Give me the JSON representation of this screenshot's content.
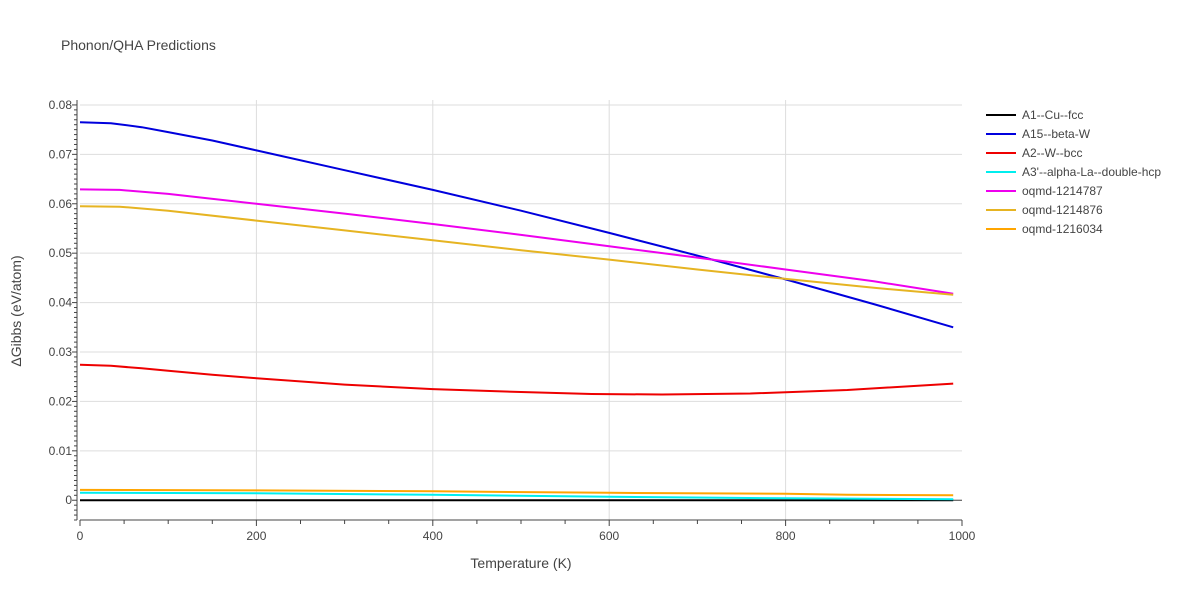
{
  "chart_data": {
    "type": "line",
    "title": "Phonon/QHA Predictions",
    "xlabel": "Temperature (K)",
    "ylabel": "ΔGibbs (eV/atom)",
    "xlim": [
      0,
      1000
    ],
    "ylim": [
      -0.004,
      0.081
    ],
    "xticks": [
      0,
      200,
      400,
      600,
      800,
      1000
    ],
    "xtick_labels": [
      "0",
      "200",
      "400",
      "600",
      "800",
      "1000"
    ],
    "yticks": [
      0,
      0.01,
      0.02,
      0.03,
      0.04,
      0.05,
      0.06,
      0.07,
      0.08
    ],
    "ytick_labels": [
      "0",
      "0.01",
      "0.02",
      "0.03",
      "0.04",
      "0.05",
      "0.06",
      "0.07",
      "0.08"
    ],
    "grid": true,
    "legend_position": "right",
    "series": [
      {
        "name": "A1--Cu--fcc",
        "color": "#000000",
        "x": [
          0,
          990
        ],
        "y": [
          0,
          0
        ]
      },
      {
        "name": "A15--beta-W",
        "color": "#0000dd",
        "x": [
          0,
          35,
          70,
          100,
          150,
          200,
          300,
          400,
          500,
          600,
          700,
          800,
          900,
          990
        ],
        "y": [
          0.0765,
          0.0763,
          0.0755,
          0.0745,
          0.0728,
          0.0708,
          0.0668,
          0.0628,
          0.0586,
          0.0541,
          0.0495,
          0.0447,
          0.0397,
          0.035
        ]
      },
      {
        "name": "A2--W--bcc",
        "color": "#ee0000",
        "x": [
          0,
          35,
          70,
          100,
          150,
          200,
          300,
          400,
          500,
          580,
          660,
          760,
          870,
          990
        ],
        "y": [
          0.0274,
          0.0272,
          0.0267,
          0.0262,
          0.0254,
          0.0247,
          0.0234,
          0.0225,
          0.0219,
          0.0215,
          0.0214,
          0.0216,
          0.0223,
          0.0236
        ]
      },
      {
        "name": "A3'--alpha-La--double-hcp",
        "color": "#00eeee",
        "x": [
          0,
          200,
          400,
          600,
          800,
          990
        ],
        "y": [
          0.0015,
          0.0014,
          0.0011,
          0.0007,
          0.0004,
          0.0002
        ]
      },
      {
        "name": "oqmd-1214787",
        "color": "#ee00ee",
        "x": [
          0,
          45,
          100,
          200,
          300,
          400,
          500,
          600,
          700,
          800,
          900,
          990
        ],
        "y": [
          0.0629,
          0.0628,
          0.062,
          0.06,
          0.058,
          0.0559,
          0.0537,
          0.0514,
          0.0491,
          0.0467,
          0.0443,
          0.0418
        ]
      },
      {
        "name": "oqmd-1214876",
        "color": "#e6b422",
        "x": [
          0,
          45,
          100,
          200,
          300,
          400,
          500,
          600,
          700,
          800,
          900,
          990
        ],
        "y": [
          0.0595,
          0.0594,
          0.0586,
          0.0566,
          0.0546,
          0.0526,
          0.0506,
          0.0487,
          0.0467,
          0.0448,
          0.043,
          0.0416
        ]
      },
      {
        "name": "oqmd-1216034",
        "color": "#ffa500",
        "x": [
          0,
          200,
          400,
          600,
          800,
          870,
          990
        ],
        "y": [
          0.0021,
          0.002,
          0.0018,
          0.0015,
          0.0013,
          0.0011,
          0.001
        ]
      }
    ]
  }
}
